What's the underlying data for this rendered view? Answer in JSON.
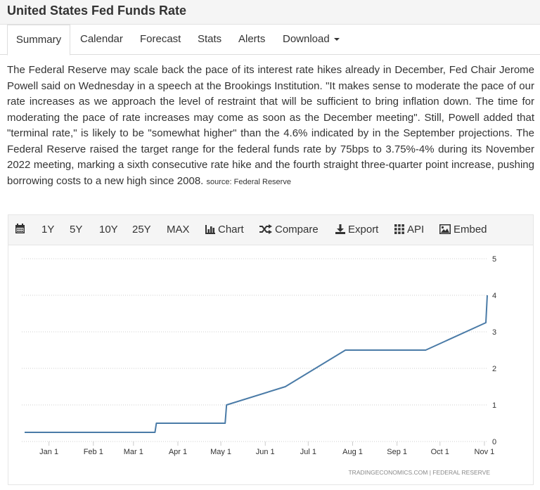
{
  "header": {
    "title": "United States Fed Funds Rate"
  },
  "tabs": [
    {
      "label": "Summary"
    },
    {
      "label": "Calendar"
    },
    {
      "label": "Forecast"
    },
    {
      "label": "Stats"
    },
    {
      "label": "Alerts"
    },
    {
      "label": "Download"
    }
  ],
  "summary": {
    "text": "The Federal Reserve may scale back the pace of its interest rate hikes already in December, Fed Chair Jerome Powell said on Wednesday in a speech at the Brookings Institution. \"It makes sense to moderate the pace of our rate increases as we approach the level of restraint that will be sufficient to bring inflation down. The time for moderating the pace of rate increases may come as soon as the December meeting\". Still, Powell added that \"terminal rate,\" is likely to be \"somewhat higher\" than the 4.6% indicated by in the September projections. The Federal Reserve raised the target range for the federal funds rate by 75bps to 3.75%-4% during its November 2022 meeting, marking a sixth consecutive rate hike and the fourth straight three-quarter point increase, pushing borrowing costs to a new high since 2008.",
    "source": "source: Federal Reserve"
  },
  "toolbar": {
    "ranges": [
      "1Y",
      "5Y",
      "10Y",
      "25Y",
      "MAX"
    ],
    "chart_label": "Chart",
    "compare_label": "Compare",
    "export_label": "Export",
    "api_label": "API",
    "embed_label": "Embed",
    "icons": [
      "calendar-icon",
      "bar-chart-icon",
      "shuffle-icon",
      "download-icon",
      "grid-icon",
      "image-icon"
    ]
  },
  "chart_data": {
    "type": "line",
    "title": "",
    "xlabel": "",
    "ylabel": "",
    "ylim": [
      0,
      5
    ],
    "y_ticks": [
      0,
      1,
      2,
      3,
      4,
      5
    ],
    "y_axis_side": "right",
    "grid": "horizontal dotted",
    "x_tick_labels": [
      "Jan 1",
      "Feb 1",
      "Mar 1",
      "Apr 1",
      "May 1",
      "Jun 1",
      "Jul 1",
      "Aug 1",
      "Sep 1",
      "Oct 1",
      "Nov 1"
    ],
    "x_tick_dates": [
      "2022-01-01",
      "2022-02-01",
      "2022-03-01",
      "2022-04-01",
      "2022-05-01",
      "2022-06-01",
      "2022-07-01",
      "2022-08-01",
      "2022-09-01",
      "2022-10-01",
      "2022-11-01"
    ],
    "series": [
      {
        "color": "#4a7ba7",
        "x": [
          "2021-12-15",
          "2022-03-16",
          "2022-03-17",
          "2022-05-04",
          "2022-05-05",
          "2022-06-15",
          "2022-07-27",
          "2022-09-21",
          "2022-11-02",
          "2022-11-03"
        ],
        "y": [
          0.25,
          0.25,
          0.5,
          0.5,
          1.0,
          1.5,
          2.5,
          2.5,
          3.25,
          4.0
        ]
      }
    ],
    "footer": "TRADINGECONOMICS.COM  |  FEDERAL RESERVE"
  }
}
